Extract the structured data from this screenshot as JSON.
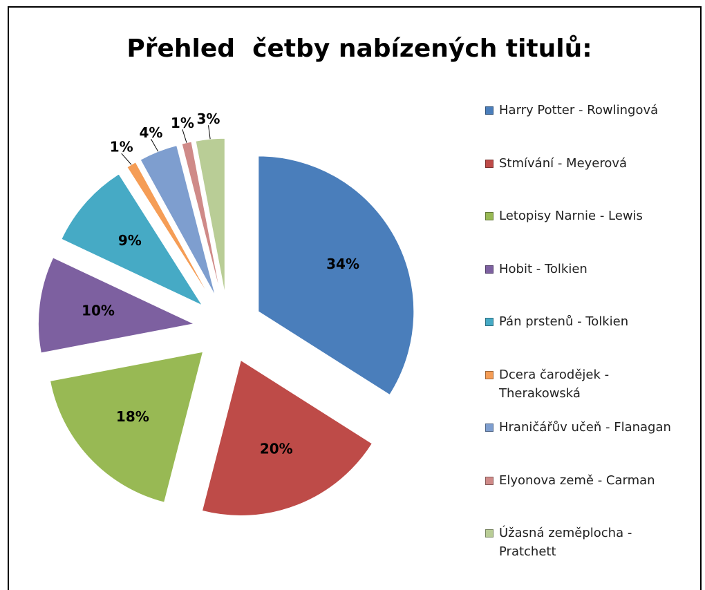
{
  "chart_data": {
    "type": "pie",
    "title": "Přehled  četby nabízených titulů:",
    "categories": [
      "Harry Potter - Rowlingová",
      "Stmívání - Meyerová",
      "Letopisy Narnie - Lewis",
      "Hobit - Tolkien",
      "Pán prstenů - Tolkien",
      "Dcera čarodějek - Therakowská",
      "Hraničářův učeň - Flanagan",
      "Elyonova země - Carman",
      "Úžasná zeměplocha - Pratchett"
    ],
    "values": [
      34,
      20,
      18,
      10,
      9,
      1,
      4,
      1,
      3
    ],
    "value_labels": [
      "34%",
      "20%",
      "18%",
      "10%",
      "9%",
      "1%",
      "4%",
      "1%",
      "3%"
    ],
    "colors": [
      "#4a7ebb",
      "#be4b48",
      "#98b954",
      "#7d60a0",
      "#46aac5",
      "#f59d56",
      "#7e9ecf",
      "#cf8a88",
      "#b9cd96"
    ],
    "legend": "right"
  }
}
